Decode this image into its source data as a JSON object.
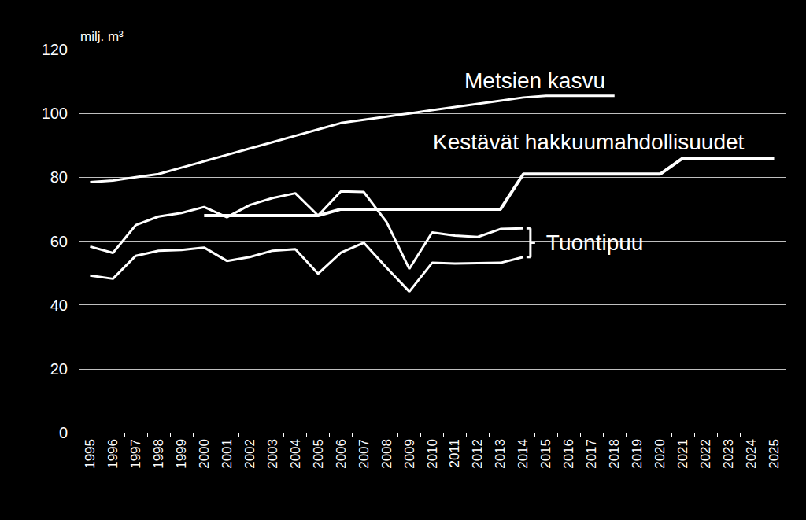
{
  "chart_data": {
    "type": "line",
    "ylabel": "milj. m³",
    "categories": [
      "1995",
      "1996",
      "1997",
      "1998",
      "1999",
      "2000",
      "2001",
      "2002",
      "2003",
      "2004",
      "2005",
      "2006",
      "2007",
      "2008",
      "2009",
      "2010",
      "2011",
      "2012",
      "2013",
      "2014",
      "2015",
      "2016",
      "2017",
      "2018",
      "2019",
      "2020",
      "2021",
      "2022",
      "2023",
      "2024",
      "2025"
    ],
    "series": [
      {
        "name": "Metsien kasvu",
        "color": "#ffffff",
        "values": [
          78.5,
          79,
          80,
          81,
          83,
          85,
          87,
          89,
          91,
          93,
          95,
          97,
          98,
          99,
          100,
          101,
          102,
          103,
          104,
          105,
          105.5,
          105.5,
          105.5,
          105.5,
          null,
          null,
          null,
          null,
          null,
          null,
          null
        ]
      },
      {
        "name": "Kestävät hakkuumahdollisuudet",
        "color": "#ffffff",
        "values": [
          null,
          null,
          null,
          null,
          null,
          68,
          68,
          68,
          68,
          68,
          68,
          70,
          70,
          70,
          70,
          70,
          70,
          70,
          70,
          81,
          81,
          81,
          81,
          81,
          81,
          81,
          86,
          86,
          86,
          86,
          86
        ]
      },
      {
        "color": "#ffffff",
        "values": [
          58.3,
          56.3,
          65,
          67.7,
          68.8,
          70.7,
          67.5,
          71.3,
          73.5,
          75,
          68,
          75.6,
          75.4,
          66,
          51.3,
          62.7,
          61.7,
          61.3,
          63.8,
          64,
          null,
          null,
          null,
          null,
          null,
          null,
          null,
          null,
          null,
          null,
          null
        ]
      },
      {
        "color": "#ffffff",
        "values": [
          49.2,
          48.2,
          55.4,
          57,
          57.2,
          58,
          53.8,
          55,
          57,
          57.5,
          49.8,
          56.4,
          59.5,
          51.7,
          44.2,
          53.2,
          53,
          53.1,
          53.2,
          55,
          null,
          null,
          null,
          null,
          null,
          null,
          null,
          null,
          null,
          null,
          null
        ]
      }
    ],
    "annotations": [
      "Tuontipuu"
    ],
    "ylim": [
      0,
      120
    ],
    "yticks": [
      0,
      20,
      40,
      60,
      80,
      100,
      120
    ],
    "grid": true
  }
}
